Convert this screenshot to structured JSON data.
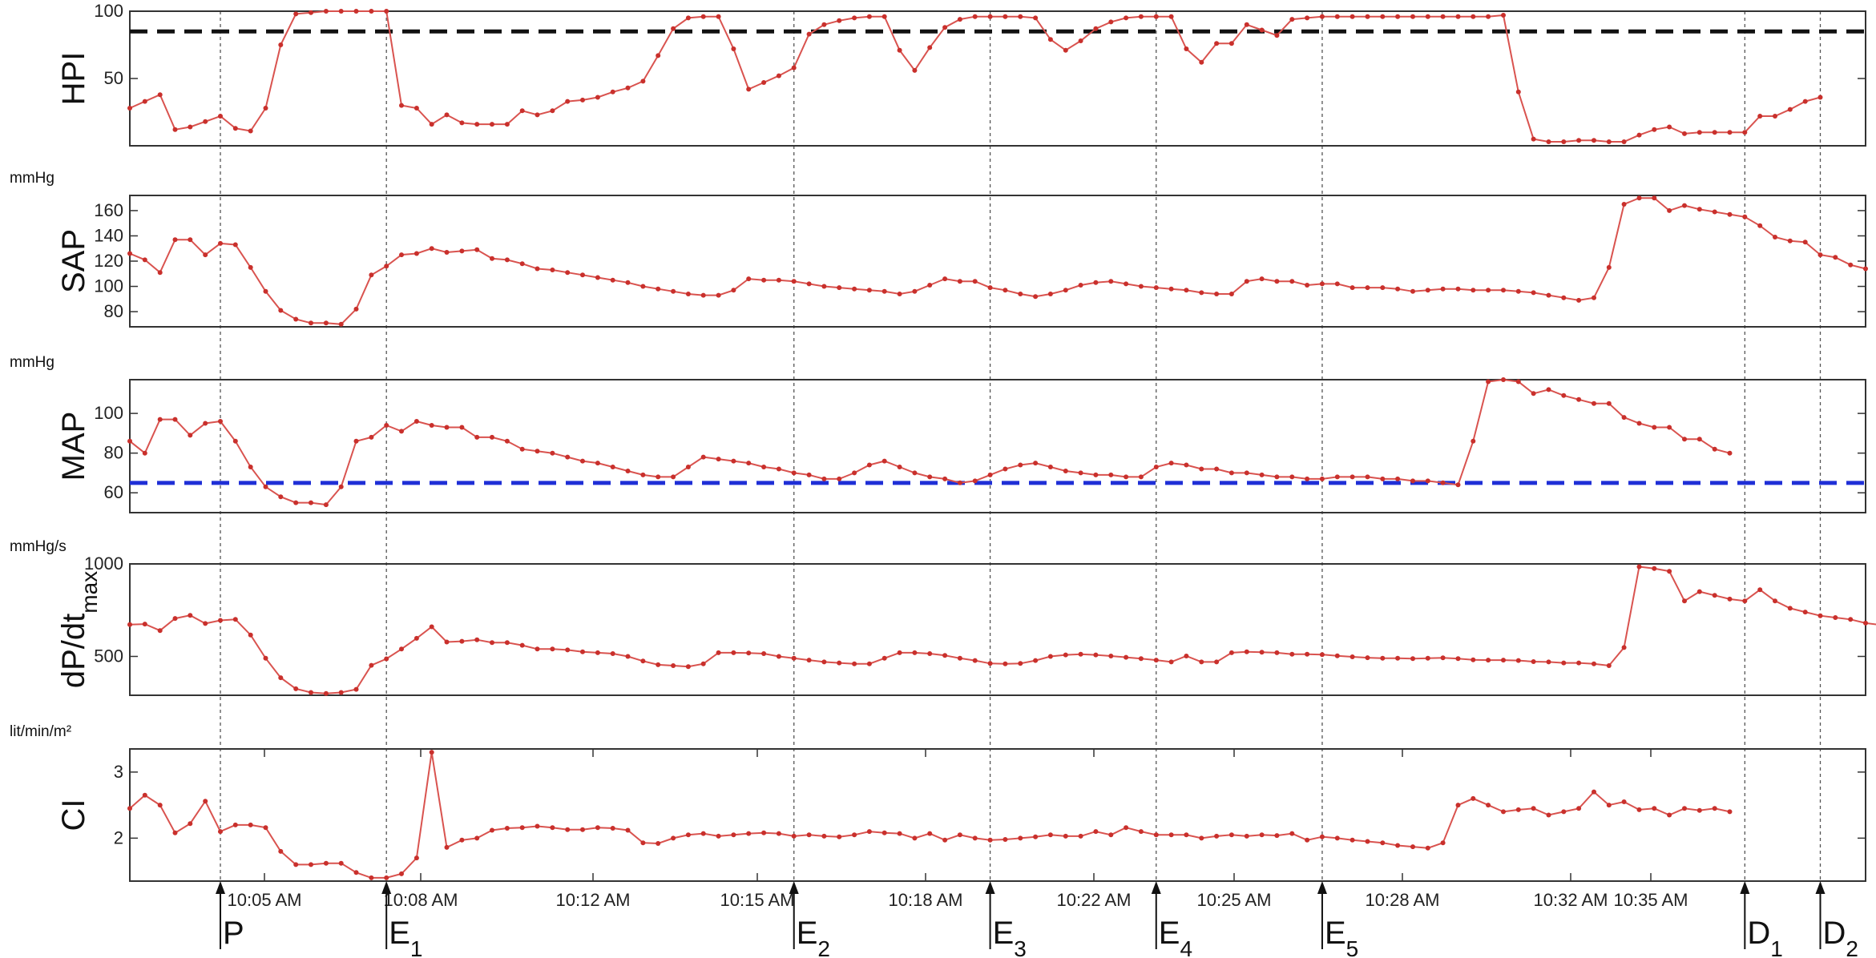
{
  "chart_data": {
    "type": "line",
    "x_ticks": [
      "10:05 AM",
      "10:08 AM",
      "10:12 AM",
      "10:15 AM",
      "10:18 AM",
      "10:22 AM",
      "10:25 AM",
      "10:28 AM",
      "10:32 AM",
      "10:35 AM"
    ],
    "events": [
      {
        "label": "P",
        "sub": "",
        "time_index": 6
      },
      {
        "label": "E",
        "sub": "1",
        "time_index": 17
      },
      {
        "label": "E",
        "sub": "2",
        "time_index": 44
      },
      {
        "label": "E",
        "sub": "3",
        "time_index": 57
      },
      {
        "label": "E",
        "sub": "4",
        "time_index": 68
      },
      {
        "label": "E",
        "sub": "5",
        "time_index": 79
      },
      {
        "label": "D",
        "sub": "1",
        "time_index": 107
      },
      {
        "label": "D",
        "sub": "2",
        "time_index": 112
      }
    ],
    "panels": [
      {
        "ylabel": "HPI",
        "sublabel": "",
        "unit": "",
        "ylim": [
          0,
          100
        ],
        "ticks": [
          50,
          100
        ],
        "threshold": {
          "value": 85,
          "color": "#111111"
        },
        "values": [
          28,
          33,
          38,
          12,
          14,
          18,
          22,
          13,
          11,
          28,
          75,
          98,
          99,
          100,
          100,
          100,
          100,
          100,
          30,
          28,
          16,
          23,
          17,
          16,
          16,
          16,
          26,
          23,
          26,
          33,
          34,
          36,
          40,
          43,
          48,
          67,
          87,
          95,
          96,
          96,
          72,
          42,
          47,
          52,
          58,
          83,
          90,
          93,
          95,
          96,
          96,
          71,
          56,
          73,
          88,
          94,
          96,
          96,
          96,
          96,
          95,
          79,
          71,
          78,
          87,
          92,
          95,
          96,
          96,
          96,
          72,
          62,
          76,
          76,
          90,
          86,
          82,
          94,
          95,
          96,
          96,
          96,
          96,
          96,
          96,
          96,
          96,
          96,
          96,
          96,
          96,
          97,
          40,
          5,
          3,
          3,
          4,
          4,
          3,
          3,
          8,
          12,
          14,
          9,
          10,
          10,
          10,
          10,
          22,
          22,
          27,
          33,
          36
        ]
      },
      {
        "ylabel": "SAP",
        "sublabel": "",
        "unit": "mmHg",
        "ylim": [
          68,
          172
        ],
        "ticks": [
          80,
          100,
          120,
          140,
          160
        ],
        "values": [
          126,
          121,
          111,
          137,
          137,
          125,
          134,
          133,
          115,
          96,
          81,
          74,
          71,
          71,
          70,
          82,
          109,
          116,
          125,
          126,
          130,
          127,
          128,
          129,
          122,
          121,
          118,
          114,
          113,
          111,
          109,
          107,
          105,
          103,
          100,
          98,
          96,
          94,
          93,
          93,
          97,
          106,
          105,
          105,
          104,
          102,
          100,
          99,
          98,
          97,
          96,
          94,
          96,
          101,
          106,
          104,
          104,
          99,
          97,
          94,
          92,
          94,
          97,
          101,
          103,
          104,
          102,
          100,
          99,
          98,
          97,
          95,
          94,
          94,
          104,
          106,
          104,
          104,
          101,
          102,
          102,
          99,
          99,
          99,
          98,
          96,
          97,
          98,
          98,
          97,
          97,
          97,
          96,
          95,
          93,
          91,
          89,
          91,
          115,
          165,
          170,
          170,
          160,
          164,
          161,
          159,
          157,
          155,
          148,
          139,
          136,
          135,
          125,
          123,
          117,
          114
        ]
      },
      {
        "ylabel": "MAP",
        "sublabel": "",
        "unit": "mmHg",
        "ylim": [
          50,
          117
        ],
        "ticks": [
          60,
          80,
          100
        ],
        "threshold": {
          "value": 65,
          "color": "#1f2fd6"
        },
        "values": [
          86,
          80,
          97,
          97,
          89,
          95,
          96,
          86,
          73,
          63,
          58,
          55,
          55,
          54,
          63,
          86,
          88,
          94,
          91,
          96,
          94,
          93,
          93,
          88,
          88,
          86,
          82,
          81,
          80,
          78,
          76,
          75,
          73,
          71,
          69,
          68,
          68,
          73,
          78,
          77,
          76,
          75,
          73,
          72,
          70,
          69,
          67,
          67,
          70,
          74,
          76,
          73,
          70,
          68,
          67,
          65,
          66,
          69,
          72,
          74,
          75,
          73,
          71,
          70,
          69,
          69,
          68,
          68,
          73,
          75,
          74,
          72,
          72,
          70,
          70,
          69,
          68,
          68,
          67,
          67,
          68,
          68,
          68,
          67,
          67,
          66,
          66,
          65,
          64,
          86,
          116,
          117,
          116,
          110,
          112,
          109,
          107,
          105,
          105,
          98,
          95,
          93,
          93,
          87,
          87,
          82,
          80
        ]
      },
      {
        "ylabel": "dP/dt",
        "sublabel": "max",
        "unit": "mmHg/s",
        "ylim": [
          290,
          1000
        ],
        "ticks": [
          500,
          1000
        ],
        "values": [
          672,
          675,
          640,
          705,
          722,
          678,
          695,
          700,
          616,
          490,
          385,
          325,
          305,
          300,
          305,
          322,
          452,
          487,
          540,
          598,
          660,
          578,
          582,
          590,
          575,
          575,
          560,
          540,
          540,
          535,
          525,
          520,
          515,
          500,
          475,
          455,
          450,
          445,
          460,
          520,
          520,
          518,
          515,
          500,
          490,
          480,
          470,
          465,
          460,
          460,
          490,
          520,
          520,
          515,
          505,
          490,
          478,
          462,
          460,
          462,
          478,
          500,
          508,
          512,
          508,
          502,
          495,
          488,
          480,
          470,
          502,
          470,
          470,
          520,
          525,
          523,
          520,
          512,
          512,
          510,
          503,
          498,
          493,
          490,
          490,
          488,
          490,
          492,
          488,
          482,
          480,
          480,
          478,
          472,
          470,
          465,
          465,
          460,
          450,
          548,
          985,
          975,
          960,
          800,
          850,
          830,
          810,
          800,
          860,
          800,
          760,
          740,
          720,
          710,
          700,
          680,
          670,
          640,
          630,
          620
        ]
      },
      {
        "ylabel": "CI",
        "sublabel": "",
        "unit": "lit/min/m²",
        "ylim": [
          1.35,
          3.35
        ],
        "ticks": [
          2,
          3
        ],
        "values": [
          2.45,
          2.65,
          2.5,
          2.08,
          2.22,
          2.56,
          2.1,
          2.2,
          2.2,
          2.16,
          1.8,
          1.6,
          1.6,
          1.62,
          1.62,
          1.48,
          1.4,
          1.4,
          1.46,
          1.7,
          3.3,
          1.86,
          1.97,
          2.0,
          2.12,
          2.15,
          2.16,
          2.18,
          2.16,
          2.13,
          2.13,
          2.16,
          2.15,
          2.12,
          1.93,
          1.92,
          2.0,
          2.05,
          2.07,
          2.03,
          2.05,
          2.07,
          2.08,
          2.07,
          2.03,
          2.05,
          2.03,
          2.02,
          2.05,
          2.1,
          2.08,
          2.07,
          2.0,
          2.07,
          1.97,
          2.05,
          2.0,
          1.97,
          1.98,
          2.0,
          2.02,
          2.05,
          2.03,
          2.03,
          2.1,
          2.05,
          2.16,
          2.1,
          2.05,
          2.05,
          2.05,
          2.0,
          2.03,
          2.05,
          2.03,
          2.05,
          2.04,
          2.07,
          1.97,
          2.02,
          2.0,
          1.97,
          1.95,
          1.93,
          1.89,
          1.87,
          1.85,
          1.93,
          2.5,
          2.6,
          2.5,
          2.4,
          2.43,
          2.45,
          2.35,
          2.4,
          2.45,
          2.7,
          2.5,
          2.55,
          2.43,
          2.45,
          2.35,
          2.45,
          2.42,
          2.45,
          2.4
        ]
      }
    ]
  }
}
